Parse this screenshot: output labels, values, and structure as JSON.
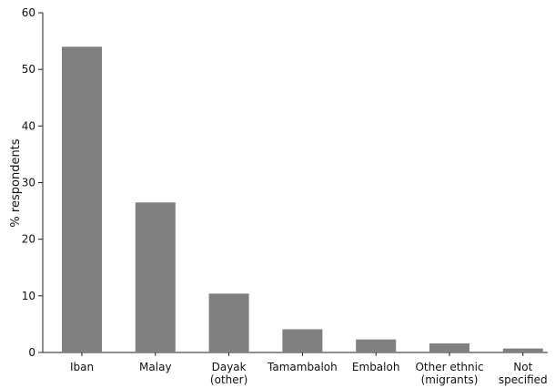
{
  "chart_data": {
    "type": "bar",
    "title": "",
    "xlabel": "",
    "ylabel": "% respondents",
    "ylim": [
      0,
      60
    ],
    "yticks": [
      0,
      10,
      20,
      30,
      40,
      50,
      60
    ],
    "grid": false,
    "legend": "none",
    "categories": [
      [
        "Iban"
      ],
      [
        "Malay"
      ],
      [
        "Dayak",
        "(other)"
      ],
      [
        "Tamambaloh"
      ],
      [
        "Embaloh"
      ],
      [
        "Other ethnic",
        "(migrants)"
      ],
      [
        "Not",
        "specified"
      ]
    ],
    "values": [
      54,
      26.5,
      10.4,
      4.1,
      2.3,
      1.6,
      0.7
    ],
    "bar_color": "#808080"
  }
}
